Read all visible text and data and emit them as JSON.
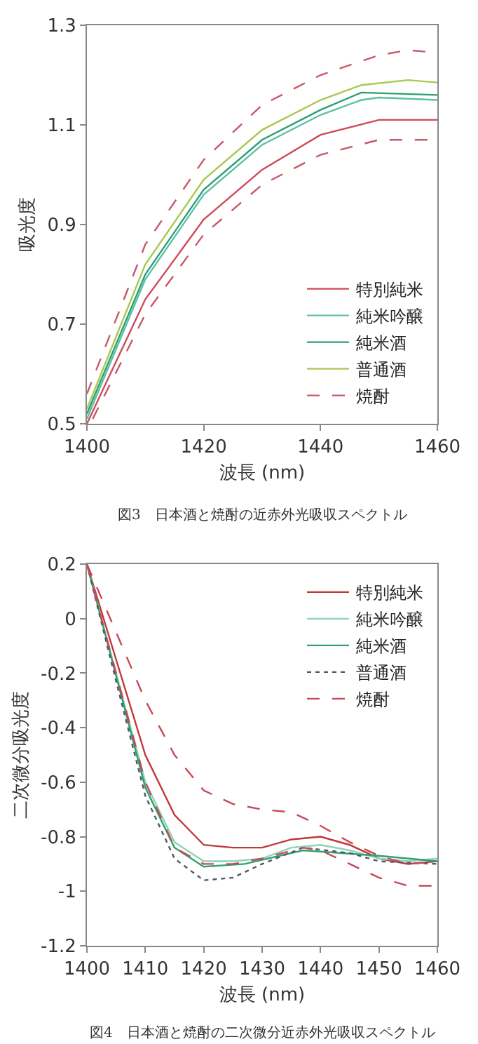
{
  "chart_data": [
    {
      "type": "line",
      "xlabel": "波長 (nm)",
      "ylabel": "吸光度",
      "annotations": [
        "図3　日本酒と焼酎の近赤外光吸収スペクトル"
      ],
      "xlim": [
        1400,
        1460
      ],
      "ylim": [
        0.5,
        1.3
      ],
      "xticks": [
        1400,
        1420,
        1440,
        1460
      ],
      "yticks": [
        0.5,
        0.7,
        0.9,
        1.1,
        1.3
      ],
      "grid": false,
      "legend": "bottom right",
      "marker": "none",
      "series": [
        {
          "name": "特別純米",
          "color": "#d04a5a",
          "line_style": "solid",
          "x": [
            1400,
            1410,
            1420,
            1430,
            1440,
            1450,
            1460
          ],
          "values": [
            0.5,
            0.75,
            0.91,
            1.01,
            1.08,
            1.11,
            1.11
          ]
        },
        {
          "name": "純米吟醸",
          "color": "#5cc0a8",
          "line_style": "solid",
          "x": [
            1400,
            1410,
            1420,
            1430,
            1440,
            1447,
            1450,
            1460
          ],
          "values": [
            0.51,
            0.79,
            0.96,
            1.06,
            1.12,
            1.15,
            1.155,
            1.15
          ]
        },
        {
          "name": "純米酒",
          "color": "#2e9e70",
          "line_style": "solid",
          "x": [
            1400,
            1410,
            1420,
            1430,
            1440,
            1447,
            1460
          ],
          "values": [
            0.52,
            0.8,
            0.97,
            1.07,
            1.13,
            1.165,
            1.16
          ]
        },
        {
          "name": "普通酒",
          "color": "#a8c850",
          "line_style": "solid",
          "x": [
            1400,
            1410,
            1420,
            1430,
            1440,
            1447,
            1455,
            1460
          ],
          "values": [
            0.53,
            0.82,
            0.99,
            1.09,
            1.15,
            1.18,
            1.19,
            1.185
          ]
        },
        {
          "name": "焼酎",
          "color": "#c85868",
          "line_style": "dashed",
          "x": [
            1400,
            1410,
            1420,
            1430,
            1440,
            1450,
            1455,
            1460
          ],
          "values": [
            0.56,
            0.86,
            1.03,
            1.14,
            1.2,
            1.24,
            1.25,
            1.245
          ]
        },
        {
          "color": "#c85868",
          "line_style": "dashed",
          "x": [
            1401,
            1410,
            1420,
            1430,
            1440,
            1450,
            1460
          ],
          "values": [
            0.51,
            0.72,
            0.88,
            0.98,
            1.04,
            1.07,
            1.07
          ]
        }
      ]
    },
    {
      "type": "line",
      "xlabel": "波長 (nm)",
      "ylabel": "二次微分吸光度",
      "annotations": [
        "図4　日本酒と焼酎の二次微分近赤外光吸収スペクトル"
      ],
      "xlim": [
        1400,
        1460
      ],
      "ylim": [
        -1.2,
        0.2
      ],
      "xticks": [
        1400,
        1410,
        1420,
        1430,
        1440,
        1450,
        1460
      ],
      "yticks": [
        -1.2,
        -1,
        -0.8,
        -0.6,
        -0.4,
        -0.2,
        0,
        0.2
      ],
      "grid": false,
      "legend": "top right",
      "marker": "none",
      "series": [
        {
          "name": "特別純米",
          "color": "#c03838",
          "line_style": "solid",
          "x": [
            1400,
            1405,
            1410,
            1415,
            1420,
            1425,
            1430,
            1435,
            1440,
            1445,
            1450,
            1455,
            1460
          ],
          "values": [
            0.2,
            -0.15,
            -0.5,
            -0.72,
            -0.83,
            -0.84,
            -0.84,
            -0.81,
            -0.8,
            -0.83,
            -0.88,
            -0.9,
            -0.89
          ]
        },
        {
          "name": "純米吟醸",
          "color": "#8ad4b8",
          "line_style": "solid",
          "x": [
            1400,
            1405,
            1410,
            1415,
            1420,
            1425,
            1430,
            1435,
            1440,
            1445,
            1450,
            1455,
            1460
          ],
          "values": [
            0.2,
            -0.2,
            -0.6,
            -0.82,
            -0.89,
            -0.89,
            -0.88,
            -0.84,
            -0.83,
            -0.85,
            -0.88,
            -0.89,
            -0.88
          ]
        },
        {
          "name": "純米酒",
          "color": "#30a070",
          "line_style": "solid",
          "x": [
            1400,
            1405,
            1410,
            1415,
            1420,
            1427,
            1437,
            1450,
            1460
          ],
          "values": [
            0.2,
            -0.21,
            -0.62,
            -0.84,
            -0.91,
            -0.9,
            -0.85,
            -0.87,
            -0.89
          ]
        },
        {
          "name": "普通酒",
          "color": "#505868",
          "line_style": "dotted",
          "x": [
            1400,
            1405,
            1410,
            1415,
            1420,
            1425,
            1430,
            1437,
            1445,
            1450,
            1460
          ],
          "values": [
            0.2,
            -0.23,
            -0.65,
            -0.88,
            -0.96,
            -0.95,
            -0.9,
            -0.84,
            -0.86,
            -0.89,
            -0.9
          ]
        },
        {
          "name": "焼酎",
          "color": "#c84858",
          "line_style": "dashed",
          "x": [
            1400,
            1405,
            1410,
            1415,
            1420,
            1425,
            1430,
            1435,
            1440,
            1445,
            1450,
            1455,
            1460
          ],
          "values": [
            0.2,
            -0.05,
            -0.3,
            -0.5,
            -0.63,
            -0.68,
            -0.7,
            -0.71,
            -0.76,
            -0.82,
            -0.87,
            -0.9,
            -0.89
          ]
        },
        {
          "color": "#c84858",
          "line_style": "dashed",
          "x": [
            1400,
            1405,
            1410,
            1415,
            1420,
            1425,
            1430,
            1437,
            1440,
            1445,
            1450,
            1455,
            1460
          ],
          "values": [
            0.2,
            -0.2,
            -0.6,
            -0.84,
            -0.9,
            -0.9,
            -0.88,
            -0.84,
            -0.85,
            -0.9,
            -0.95,
            -0.98,
            -0.98
          ]
        }
      ]
    }
  ]
}
